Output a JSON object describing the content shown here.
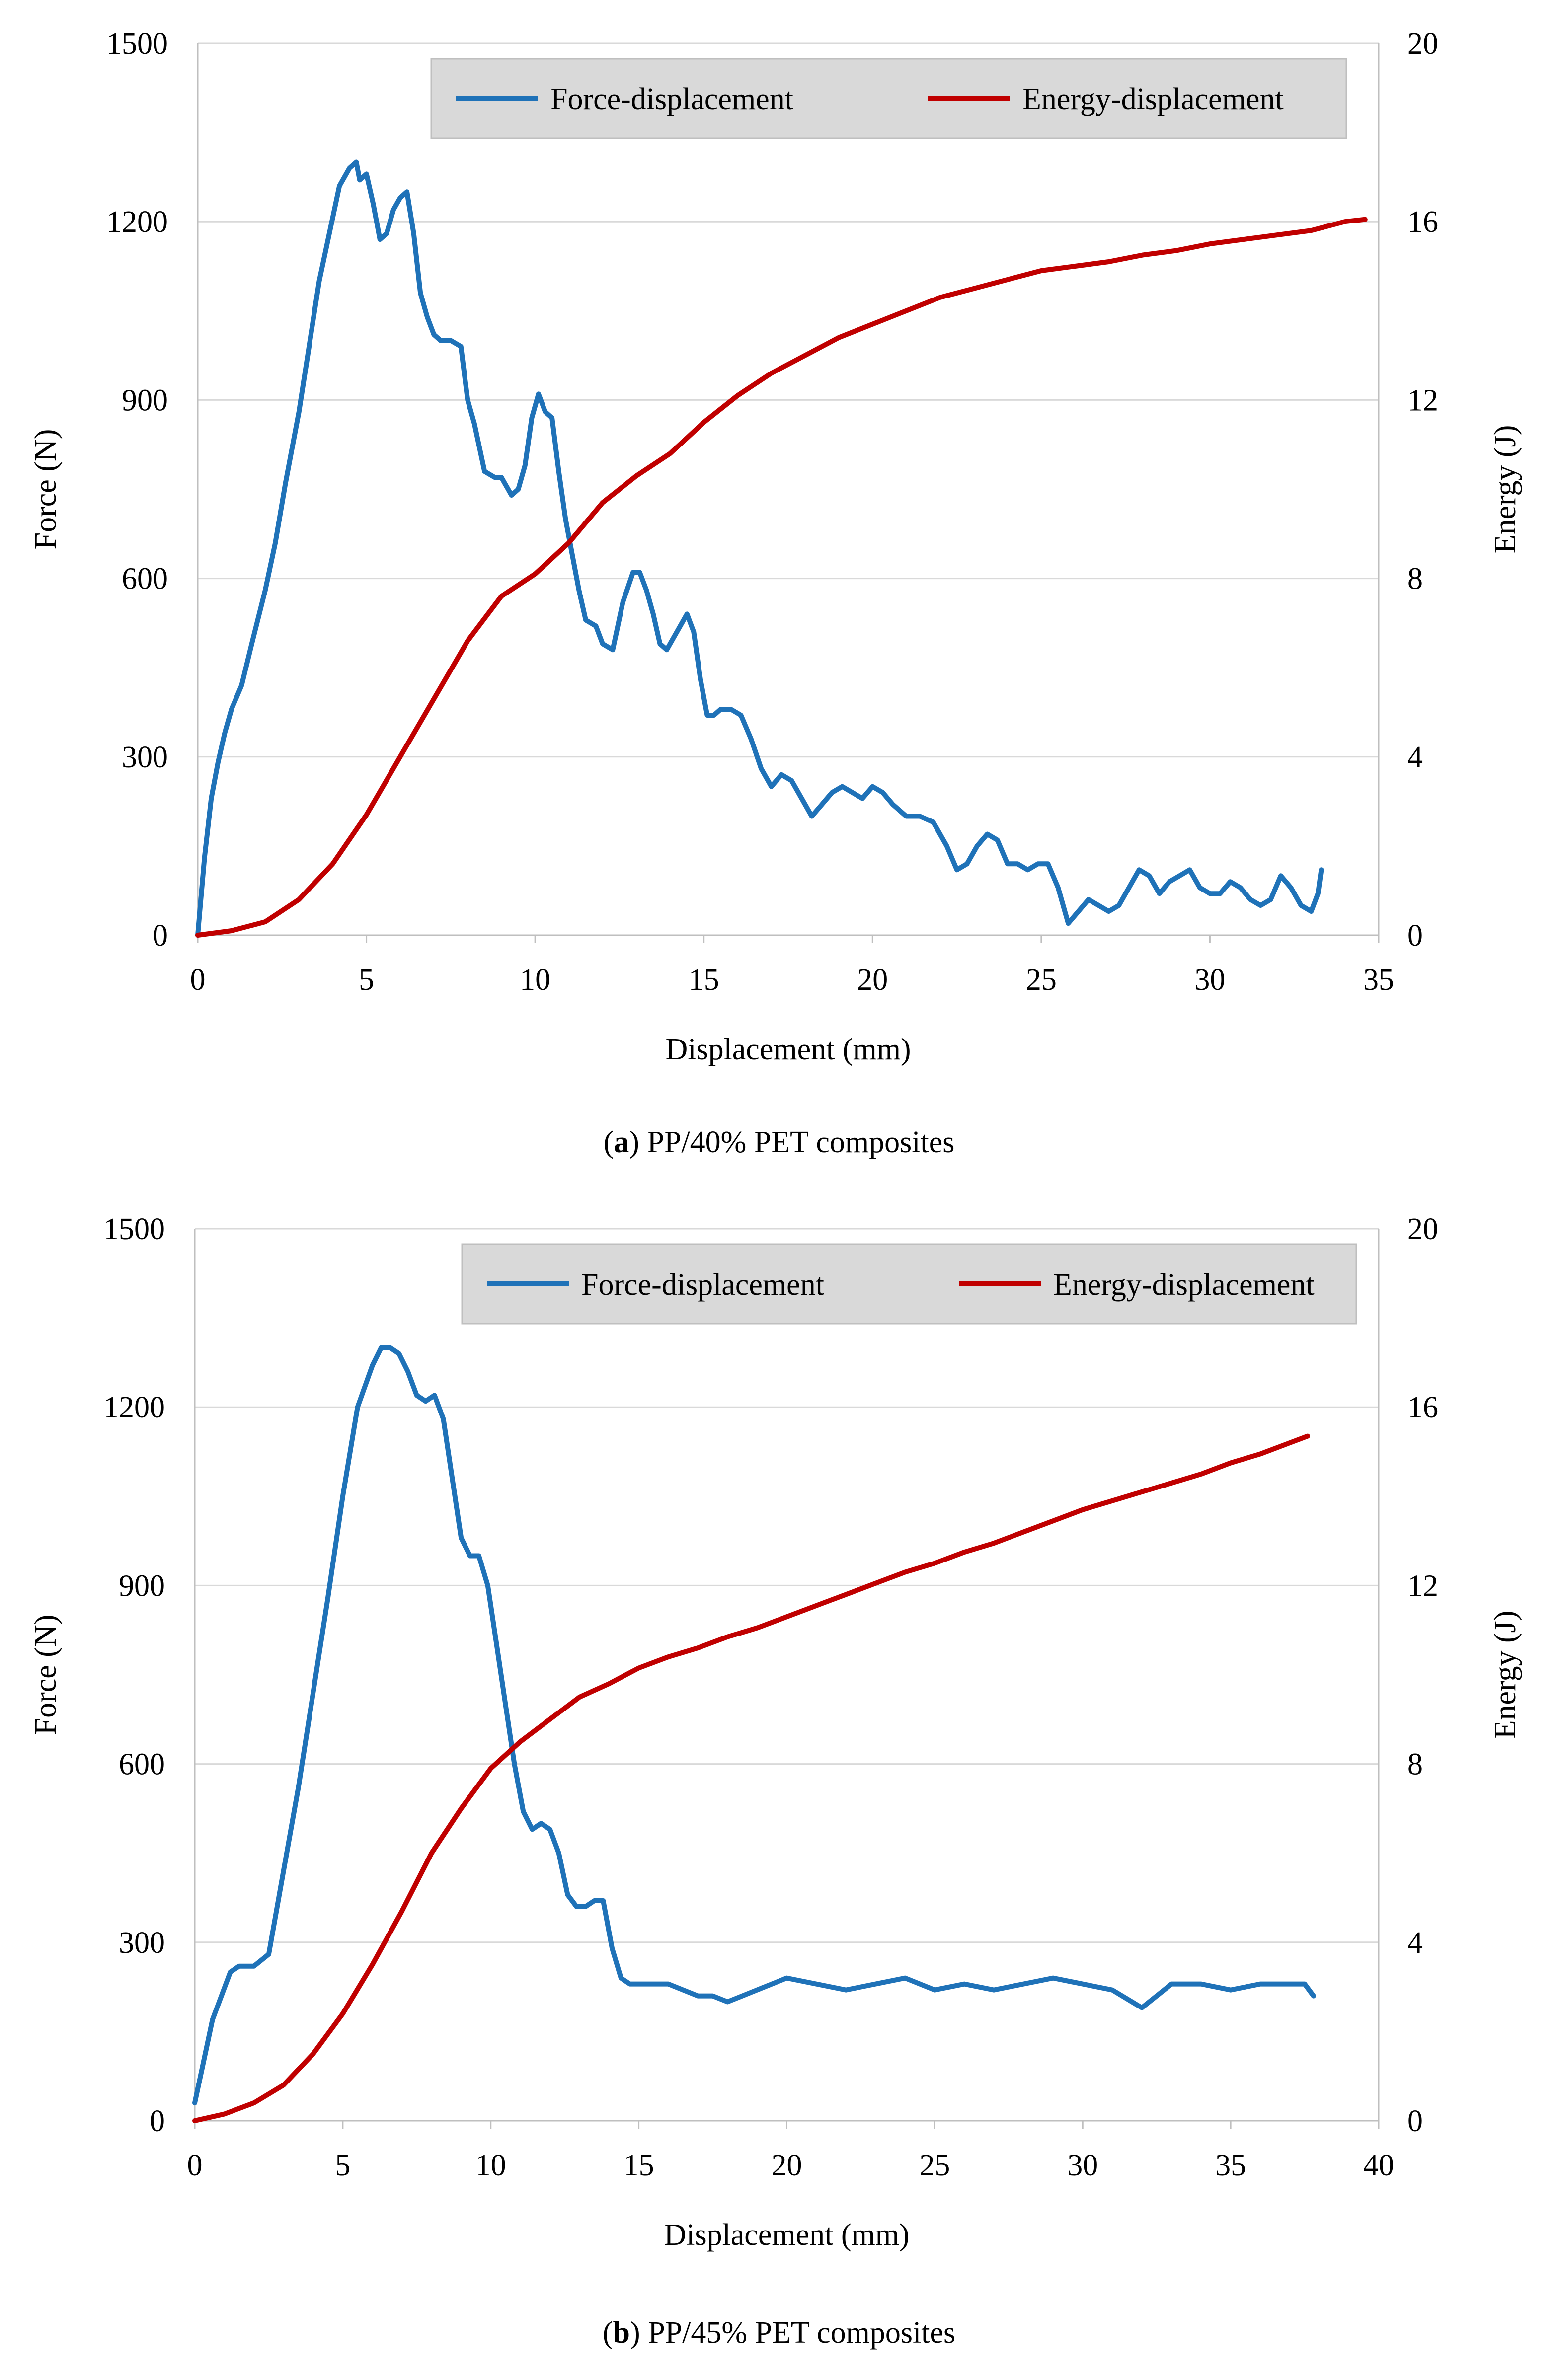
{
  "colors": {
    "force": "#1f72b8",
    "energy": "#c00000",
    "grid": "#d9d9d9",
    "axis": "#bfbfbf",
    "legend_bg": "#d9d9d9"
  },
  "chart_data": [
    {
      "type": "line",
      "caption_label": "a",
      "caption_text": "PP/40% PET composites",
      "xlabel": "Displacement (mm)",
      "ylabel": "Force (N)",
      "y2label": "Energy (J)",
      "xlim": [
        0,
        35
      ],
      "ylim": [
        0,
        1500
      ],
      "y2lim": [
        0,
        20
      ],
      "xticks": [
        "0",
        "5",
        "10",
        "15",
        "20",
        "25",
        "30",
        "35"
      ],
      "yticks": [
        "0",
        "300",
        "600",
        "900",
        "1200",
        "1500"
      ],
      "y2ticks": [
        "0",
        "4",
        "8",
        "12",
        "16",
        "20"
      ],
      "legend": [
        "Force-displacement",
        "Energy-displacement"
      ],
      "series": [
        {
          "name": "Force-displacement",
          "axis": "left",
          "x": [
            0,
            0.2,
            0.4,
            0.6,
            0.8,
            1.0,
            1.3,
            1.6,
            2.0,
            2.3,
            2.6,
            3.0,
            3.3,
            3.6,
            3.9,
            4.2,
            4.5,
            4.7,
            4.8,
            5.0,
            5.2,
            5.4,
            5.6,
            5.8,
            6.0,
            6.2,
            6.4,
            6.6,
            6.8,
            7.0,
            7.2,
            7.5,
            7.8,
            8.0,
            8.2,
            8.5,
            8.8,
            9.0,
            9.3,
            9.5,
            9.7,
            9.9,
            10.1,
            10.3,
            10.5,
            10.7,
            10.9,
            11.1,
            11.3,
            11.5,
            11.8,
            12.0,
            12.3,
            12.6,
            12.9,
            13.1,
            13.3,
            13.5,
            13.7,
            13.9,
            14.1,
            14.3,
            14.5,
            14.7,
            14.9,
            15.1,
            15.3,
            15.5,
            15.8,
            16.1,
            16.4,
            16.7,
            17.0,
            17.3,
            17.6,
            17.9,
            18.2,
            18.5,
            18.8,
            19.1,
            19.4,
            19.7,
            20.0,
            20.3,
            20.6,
            21.0,
            21.4,
            21.8,
            22.2,
            22.5,
            22.8,
            23.1,
            23.4,
            23.7,
            24.0,
            24.3,
            24.6,
            24.9,
            25.2,
            25.5,
            25.8,
            26.1,
            26.4,
            26.7,
            27.0,
            27.3,
            27.6,
            27.9,
            28.2,
            28.5,
            28.8,
            29.1,
            29.4,
            29.7,
            30.0,
            30.3,
            30.6,
            30.9,
            31.2,
            31.5,
            31.8,
            32.1,
            32.4,
            32.7,
            33.0,
            33.2,
            33.3
          ],
          "y": [
            0,
            130,
            230,
            290,
            340,
            380,
            420,
            490,
            580,
            660,
            760,
            880,
            990,
            1100,
            1180,
            1260,
            1290,
            1300,
            1270,
            1280,
            1230,
            1170,
            1180,
            1220,
            1240,
            1250,
            1180,
            1080,
            1040,
            1010,
            1000,
            1000,
            990,
            900,
            860,
            780,
            770,
            770,
            740,
            750,
            790,
            870,
            910,
            880,
            870,
            780,
            700,
            640,
            580,
            530,
            520,
            490,
            480,
            560,
            610,
            610,
            580,
            540,
            490,
            480,
            500,
            520,
            540,
            510,
            430,
            370,
            370,
            380,
            380,
            370,
            330,
            280,
            250,
            270,
            260,
            230,
            200,
            220,
            240,
            250,
            240,
            230,
            250,
            240,
            220,
            200,
            200,
            190,
            150,
            110,
            120,
            150,
            170,
            160,
            120,
            120,
            110,
            120,
            120,
            80,
            20,
            40,
            60,
            50,
            40,
            50,
            80,
            110,
            100,
            70,
            90,
            100,
            110,
            80,
            70,
            70,
            90,
            80,
            60,
            50,
            60,
            100,
            80,
            50,
            40,
            70,
            110
          ]
        },
        {
          "name": "Energy-displacement",
          "axis": "right",
          "x": [
            0,
            1,
            2,
            3,
            4,
            5,
            6,
            7,
            8,
            9,
            10,
            11,
            12,
            13,
            14,
            15,
            16,
            17,
            18,
            19,
            20,
            21,
            22,
            23,
            24,
            25,
            26,
            27,
            28,
            29,
            30,
            31,
            32,
            33,
            34,
            34.6
          ],
          "y": [
            0,
            0.1,
            0.3,
            0.8,
            1.6,
            2.7,
            4.0,
            5.3,
            6.6,
            7.6,
            8.1,
            8.8,
            9.7,
            10.3,
            10.8,
            11.5,
            12.1,
            12.6,
            13.0,
            13.4,
            13.7,
            14.0,
            14.3,
            14.5,
            14.7,
            14.9,
            15.0,
            15.1,
            15.25,
            15.35,
            15.5,
            15.6,
            15.7,
            15.8,
            16.0,
            16.05
          ]
        }
      ]
    },
    {
      "type": "line",
      "caption_label": "b",
      "caption_text": "PP/45% PET composites",
      "xlabel": "Displacement (mm)",
      "ylabel": "Force (N)",
      "y2label": "Energy (J)",
      "xlim": [
        0,
        40
      ],
      "ylim": [
        0,
        1500
      ],
      "y2lim": [
        0,
        20
      ],
      "xticks": [
        "0",
        "5",
        "10",
        "15",
        "20",
        "25",
        "30",
        "35",
        "40"
      ],
      "yticks": [
        "0",
        "300",
        "600",
        "900",
        "1200",
        "1500"
      ],
      "y2ticks": [
        "0",
        "4",
        "8",
        "12",
        "16",
        "20"
      ],
      "legend": [
        "Force-displacement",
        "Energy-displacement"
      ],
      "series": [
        {
          "name": "Force-displacement",
          "axis": "left",
          "x": [
            0,
            0.3,
            0.6,
            0.9,
            1.2,
            1.5,
            2.0,
            2.5,
            3.0,
            3.5,
            4.0,
            4.5,
            5.0,
            5.5,
            6.0,
            6.3,
            6.6,
            6.9,
            7.2,
            7.5,
            7.8,
            8.1,
            8.4,
            8.7,
            9.0,
            9.3,
            9.6,
            9.9,
            10.2,
            10.5,
            10.8,
            11.1,
            11.4,
            11.7,
            12.0,
            12.3,
            12.6,
            12.9,
            13.2,
            13.5,
            13.8,
            14.1,
            14.4,
            14.7,
            15.0,
            15.5,
            16.0,
            16.5,
            17.0,
            17.5,
            18.0,
            18.5,
            19.0,
            19.5,
            20.0,
            21.0,
            22.0,
            23.0,
            24.0,
            25.0,
            26.0,
            27.0,
            28.0,
            29.0,
            30.0,
            31.0,
            32.0,
            33.0,
            34.0,
            35.0,
            36.0,
            37.0,
            37.5,
            37.8
          ],
          "y": [
            30,
            100,
            170,
            210,
            250,
            260,
            260,
            280,
            420,
            560,
            720,
            880,
            1050,
            1200,
            1270,
            1300,
            1300,
            1290,
            1260,
            1220,
            1210,
            1220,
            1180,
            1080,
            980,
            950,
            950,
            900,
            800,
            700,
            600,
            520,
            490,
            500,
            490,
            450,
            380,
            360,
            360,
            370,
            370,
            290,
            240,
            230,
            230,
            230,
            230,
            220,
            210,
            210,
            200,
            210,
            220,
            230,
            240,
            230,
            220,
            230,
            240,
            220,
            230,
            220,
            230,
            240,
            230,
            220,
            190,
            230,
            230,
            220,
            230,
            230,
            230,
            210
          ]
        },
        {
          "name": "Energy-displacement",
          "axis": "right",
          "x": [
            0,
            1,
            2,
            3,
            4,
            5,
            6,
            7,
            8,
            9,
            10,
            11,
            12,
            13,
            14,
            15,
            16,
            17,
            18,
            19,
            20,
            21,
            22,
            23,
            24,
            25,
            26,
            27,
            28,
            29,
            30,
            31,
            32,
            33,
            34,
            35,
            36,
            37,
            37.6
          ],
          "y": [
            0,
            0.15,
            0.4,
            0.8,
            1.5,
            2.4,
            3.5,
            4.7,
            6.0,
            7.0,
            7.9,
            8.5,
            9.0,
            9.5,
            9.8,
            10.15,
            10.4,
            10.6,
            10.85,
            11.05,
            11.3,
            11.55,
            11.8,
            12.05,
            12.3,
            12.5,
            12.75,
            12.95,
            13.2,
            13.45,
            13.7,
            13.9,
            14.1,
            14.3,
            14.5,
            14.75,
            14.95,
            15.2,
            15.35
          ]
        }
      ]
    }
  ]
}
